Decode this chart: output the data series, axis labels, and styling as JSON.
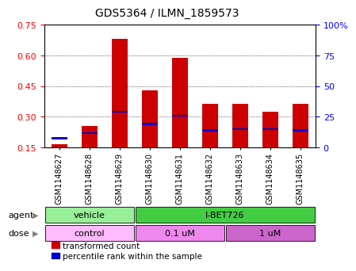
{
  "title": "GDS5364 / ILMN_1859573",
  "samples": [
    "GSM1148627",
    "GSM1148628",
    "GSM1148629",
    "GSM1148630",
    "GSM1148631",
    "GSM1148632",
    "GSM1148633",
    "GSM1148634",
    "GSM1148635"
  ],
  "red_values": [
    0.165,
    0.255,
    0.68,
    0.43,
    0.59,
    0.365,
    0.365,
    0.325,
    0.365
  ],
  "blue_values": [
    0.195,
    0.22,
    0.325,
    0.265,
    0.305,
    0.235,
    0.24,
    0.24,
    0.235
  ],
  "baseline": 0.15,
  "ylim_left": [
    0.15,
    0.75
  ],
  "yticks_left": [
    0.15,
    0.3,
    0.45,
    0.6,
    0.75
  ],
  "yticks_right": [
    0,
    25,
    50,
    75,
    100
  ],
  "bar_color": "#cc0000",
  "blue_color": "#0000cc",
  "agent_groups": [
    {
      "label": "vehicle",
      "start": 0,
      "end": 3,
      "color": "#99ee99"
    },
    {
      "label": "I-BET726",
      "start": 3,
      "end": 9,
      "color": "#44cc44"
    }
  ],
  "dose_groups": [
    {
      "label": "control",
      "start": 0,
      "end": 3,
      "color": "#ffbbff"
    },
    {
      "label": "0.1 uM",
      "start": 3,
      "end": 6,
      "color": "#ee88ee"
    },
    {
      "label": "1 uM",
      "start": 6,
      "end": 9,
      "color": "#cc66cc"
    }
  ],
  "legend_red": "transformed count",
  "legend_blue": "percentile rank within the sample",
  "bar_width": 0.55,
  "bg_color": "#ffffff",
  "title_fontsize": 10,
  "tick_fontsize": 8,
  "bar_label_fontsize": 7
}
